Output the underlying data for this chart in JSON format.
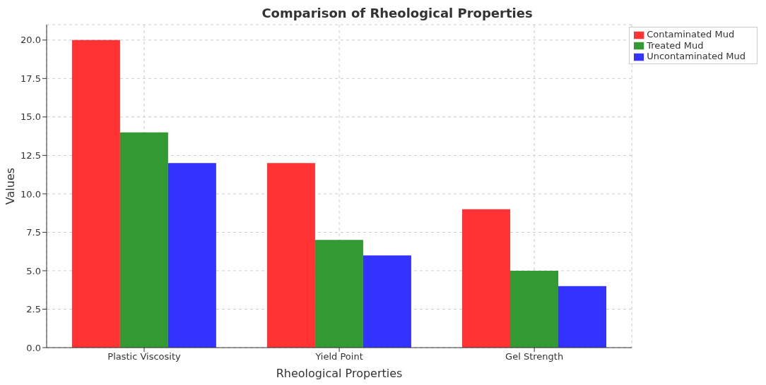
{
  "chart_data": {
    "type": "bar",
    "title": "Comparison of Rheological Properties",
    "xlabel": "Rheological Properties",
    "ylabel": "Values",
    "categories": [
      "Plastic Viscosity",
      "Yield Point",
      "Gel Strength"
    ],
    "series": [
      {
        "name": "Contaminated Mud",
        "color": "#ff3333",
        "values": [
          20,
          12,
          9
        ]
      },
      {
        "name": "Treated Mud",
        "color": "#339933",
        "values": [
          14,
          7,
          5
        ]
      },
      {
        "name": "Uncontaminated Mud",
        "color": "#3333ff",
        "values": [
          12,
          6,
          4
        ]
      }
    ],
    "ylim": [
      0,
      21
    ],
    "yticks": [
      {
        "value": 0,
        "label": "0.0"
      },
      2.5,
      {
        "value": 5,
        "label": "5.0"
      },
      7.5,
      {
        "value": 10,
        "label": "10.0"
      },
      12.5,
      {
        "value": 15,
        "label": "15.0"
      },
      17.5,
      {
        "value": 20,
        "label": "20.0"
      }
    ],
    "grid": true,
    "legend": "top right"
  }
}
